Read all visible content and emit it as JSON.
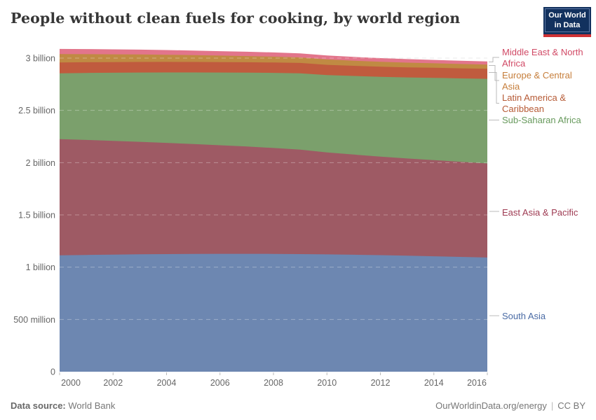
{
  "header": {
    "title": "People without clean fuels for cooking, by world region",
    "logo": {
      "line1": "Our World",
      "line2": "in Data"
    }
  },
  "footer": {
    "source_label": "Data source:",
    "source_value": "World Bank",
    "url": "OurWorldinData.org/energy",
    "separator": "|",
    "license": "CC BY"
  },
  "legend": {
    "items": [
      {
        "label": "Middle East & North Africa",
        "color": "#d14a66"
      },
      {
        "label": "Europe & Central Asia",
        "color": "#c67e3b"
      },
      {
        "label": "Latin America & Caribbean",
        "color": "#b65a35"
      },
      {
        "label": "Sub-Saharan Africa",
        "color": "#689a5d"
      },
      {
        "label": "East Asia & Pacific",
        "color": "#9e3a52"
      },
      {
        "label": "South Asia",
        "color": "#4a6ba5"
      }
    ]
  },
  "chart_data": {
    "type": "area",
    "stacked": true,
    "title": "People without clean fuels for cooking, by world region",
    "units": "billions of people",
    "grid": "dashed horizontal",
    "legend_position": "right",
    "x": [
      2000,
      2001,
      2002,
      2003,
      2004,
      2005,
      2006,
      2007,
      2008,
      2009,
      2010,
      2011,
      2012,
      2013,
      2014,
      2015,
      2016
    ],
    "xlim": [
      2000,
      2016
    ],
    "ylim_billions": [
      0,
      3.11
    ],
    "series": [
      {
        "name": "South Asia",
        "color": "#6d87b1",
        "label_color": "#4a6ba5",
        "values": [
          1.113,
          1.117,
          1.12,
          1.123,
          1.125,
          1.127,
          1.128,
          1.128,
          1.127,
          1.125,
          1.122,
          1.119,
          1.115,
          1.11,
          1.104,
          1.098,
          1.092
        ]
      },
      {
        "name": "East Asia & Pacific",
        "color": "#9e5a64",
        "label_color": "#9e3a52",
        "values": [
          1.112,
          1.1,
          1.088,
          1.076,
          1.064,
          1.051,
          1.038,
          1.026,
          1.013,
          1.0,
          0.975,
          0.958,
          0.942,
          0.93,
          0.92,
          0.91,
          0.9
        ]
      },
      {
        "name": "Sub-Saharan Africa",
        "color": "#7ba06c",
        "label_color": "#689a5d",
        "values": [
          0.63,
          0.641,
          0.652,
          0.663,
          0.674,
          0.685,
          0.696,
          0.707,
          0.719,
          0.73,
          0.741,
          0.752,
          0.764,
          0.775,
          0.787,
          0.798,
          0.81
        ]
      },
      {
        "name": "Latin America & Caribbean",
        "color": "#c05b3e",
        "label_color": "#b65a35",
        "values": [
          0.103,
          0.1025,
          0.102,
          0.1015,
          0.101,
          0.1005,
          0.1,
          0.0995,
          0.099,
          0.0985,
          0.098,
          0.0975,
          0.097,
          0.0967,
          0.0964,
          0.0962,
          0.096
        ]
      },
      {
        "name": "Europe & Central Asia",
        "color": "#c08a43",
        "label_color": "#c67e3b",
        "values": [
          0.08,
          0.077,
          0.074,
          0.071,
          0.068,
          0.065,
          0.062,
          0.059,
          0.056,
          0.053,
          0.051,
          0.049,
          0.047,
          0.045,
          0.043,
          0.0415,
          0.04
        ]
      },
      {
        "name": "Middle East & North Africa",
        "color": "#e2758b",
        "label_color": "#d14a66",
        "values": [
          0.05,
          0.0487,
          0.0475,
          0.0462,
          0.045,
          0.0437,
          0.0425,
          0.0412,
          0.04,
          0.0387,
          0.0375,
          0.0362,
          0.035,
          0.0337,
          0.0325,
          0.0312,
          0.03
        ]
      }
    ],
    "yticks": [
      {
        "v": 0,
        "label": "0"
      },
      {
        "v": 0.5,
        "label": "500 million"
      },
      {
        "v": 1,
        "label": "1 billion"
      },
      {
        "v": 1.5,
        "label": "1.5 billion"
      },
      {
        "v": 2,
        "label": "2 billion"
      },
      {
        "v": 2.5,
        "label": "2.5 billion"
      },
      {
        "v": 3,
        "label": "3 billion"
      }
    ],
    "xticks": [
      2000,
      2002,
      2004,
      2006,
      2008,
      2010,
      2012,
      2014,
      2016
    ]
  }
}
